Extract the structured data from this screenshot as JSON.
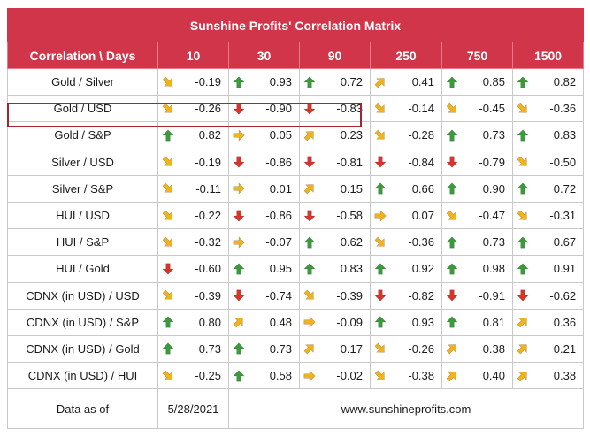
{
  "title": "Sunshine Profits' Correlation Matrix",
  "header": {
    "corner": "Correlation \\ Days",
    "columns": [
      "10",
      "30",
      "90",
      "250",
      "750",
      "1500"
    ]
  },
  "colors": {
    "header_bg": "#d1354a",
    "highlight_border": "#a3262f",
    "arrow_up": "#3a9b3a",
    "arrow_down": "#d9342b",
    "arrow_diag": "#f2b21b",
    "arrow_right": "#f2b21b"
  },
  "rows": [
    {
      "label": "Gold / Silver",
      "cells": [
        {
          "value": "-0.19",
          "arrow": "down-right"
        },
        {
          "value": "0.93",
          "arrow": "up"
        },
        {
          "value": "0.72",
          "arrow": "up"
        },
        {
          "value": "0.41",
          "arrow": "up-right"
        },
        {
          "value": "0.85",
          "arrow": "up"
        },
        {
          "value": "0.82",
          "arrow": "up"
        }
      ]
    },
    {
      "label": "Gold / USD",
      "cells": [
        {
          "value": "-0.26",
          "arrow": "down-right"
        },
        {
          "value": "-0.90",
          "arrow": "down"
        },
        {
          "value": "-0.83",
          "arrow": "down"
        },
        {
          "value": "-0.14",
          "arrow": "down-right"
        },
        {
          "value": "-0.45",
          "arrow": "down-right"
        },
        {
          "value": "-0.36",
          "arrow": "down-right"
        }
      ]
    },
    {
      "label": "Gold / S&P",
      "cells": [
        {
          "value": "0.82",
          "arrow": "up"
        },
        {
          "value": "0.05",
          "arrow": "right"
        },
        {
          "value": "0.23",
          "arrow": "up-right"
        },
        {
          "value": "-0.28",
          "arrow": "down-right"
        },
        {
          "value": "0.73",
          "arrow": "up"
        },
        {
          "value": "0.83",
          "arrow": "up"
        }
      ]
    },
    {
      "label": "Silver / USD",
      "cells": [
        {
          "value": "-0.19",
          "arrow": "down-right"
        },
        {
          "value": "-0.86",
          "arrow": "down"
        },
        {
          "value": "-0.81",
          "arrow": "down"
        },
        {
          "value": "-0.84",
          "arrow": "down"
        },
        {
          "value": "-0.79",
          "arrow": "down"
        },
        {
          "value": "-0.50",
          "arrow": "down-right"
        }
      ]
    },
    {
      "label": "Silver / S&P",
      "cells": [
        {
          "value": "-0.11",
          "arrow": "down-right"
        },
        {
          "value": "0.01",
          "arrow": "right"
        },
        {
          "value": "0.15",
          "arrow": "up-right"
        },
        {
          "value": "0.66",
          "arrow": "up"
        },
        {
          "value": "0.90",
          "arrow": "up"
        },
        {
          "value": "0.72",
          "arrow": "up"
        }
      ]
    },
    {
      "label": "HUI / USD",
      "cells": [
        {
          "value": "-0.22",
          "arrow": "down-right"
        },
        {
          "value": "-0.86",
          "arrow": "down"
        },
        {
          "value": "-0.58",
          "arrow": "down"
        },
        {
          "value": "0.07",
          "arrow": "right"
        },
        {
          "value": "-0.47",
          "arrow": "down-right"
        },
        {
          "value": "-0.31",
          "arrow": "down-right"
        }
      ]
    },
    {
      "label": "HUI / S&P",
      "cells": [
        {
          "value": "-0.32",
          "arrow": "down-right"
        },
        {
          "value": "-0.07",
          "arrow": "right"
        },
        {
          "value": "0.62",
          "arrow": "up"
        },
        {
          "value": "-0.36",
          "arrow": "down-right"
        },
        {
          "value": "0.73",
          "arrow": "up"
        },
        {
          "value": "0.67",
          "arrow": "up"
        }
      ]
    },
    {
      "label": "HUI / Gold",
      "cells": [
        {
          "value": "-0.60",
          "arrow": "down"
        },
        {
          "value": "0.95",
          "arrow": "up"
        },
        {
          "value": "0.83",
          "arrow": "up"
        },
        {
          "value": "0.92",
          "arrow": "up"
        },
        {
          "value": "0.98",
          "arrow": "up"
        },
        {
          "value": "0.91",
          "arrow": "up"
        }
      ]
    },
    {
      "label": "CDNX (in USD) / USD",
      "cells": [
        {
          "value": "-0.39",
          "arrow": "down-right"
        },
        {
          "value": "-0.74",
          "arrow": "down"
        },
        {
          "value": "-0.39",
          "arrow": "down-right"
        },
        {
          "value": "-0.82",
          "arrow": "down"
        },
        {
          "value": "-0.91",
          "arrow": "down"
        },
        {
          "value": "-0.62",
          "arrow": "down"
        }
      ]
    },
    {
      "label": "CDNX (in USD) / S&P",
      "cells": [
        {
          "value": "0.80",
          "arrow": "up"
        },
        {
          "value": "0.48",
          "arrow": "up-right"
        },
        {
          "value": "-0.09",
          "arrow": "right"
        },
        {
          "value": "0.93",
          "arrow": "up"
        },
        {
          "value": "0.81",
          "arrow": "up"
        },
        {
          "value": "0.36",
          "arrow": "up-right"
        }
      ]
    },
    {
      "label": "CDNX (in USD) / Gold",
      "cells": [
        {
          "value": "0.73",
          "arrow": "up"
        },
        {
          "value": "0.73",
          "arrow": "up"
        },
        {
          "value": "0.17",
          "arrow": "up-right"
        },
        {
          "value": "-0.26",
          "arrow": "down-right"
        },
        {
          "value": "0.38",
          "arrow": "up-right"
        },
        {
          "value": "0.21",
          "arrow": "up-right"
        }
      ]
    },
    {
      "label": "CDNX (in USD) / HUI",
      "cells": [
        {
          "value": "-0.25",
          "arrow": "down-right"
        },
        {
          "value": "0.58",
          "arrow": "up"
        },
        {
          "value": "-0.02",
          "arrow": "right"
        },
        {
          "value": "-0.38",
          "arrow": "down-right"
        },
        {
          "value": "0.40",
          "arrow": "up-right"
        },
        {
          "value": "0.38",
          "arrow": "up-right"
        }
      ]
    }
  ],
  "footer": {
    "label": "Data as of",
    "date": "5/28/2021",
    "website": "www.sunshineprofits.com"
  }
}
